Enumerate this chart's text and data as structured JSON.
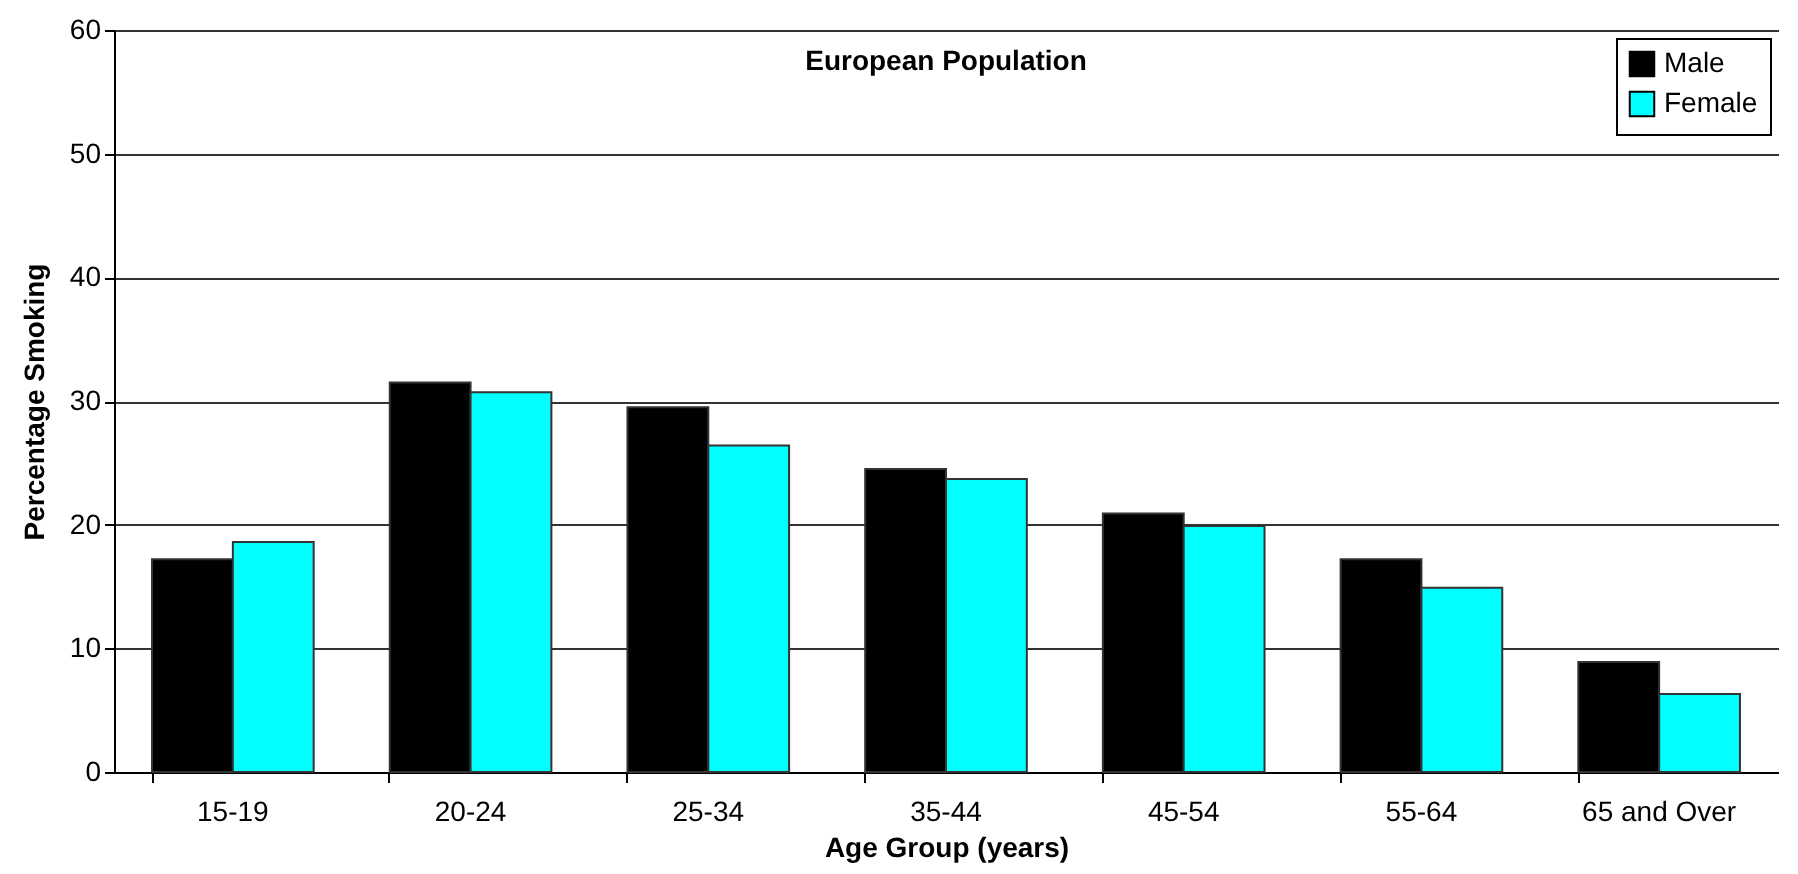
{
  "chart_data": {
    "type": "bar",
    "title": "European Population",
    "xlabel": "Age Group (years)",
    "ylabel": "Percentage Smoking",
    "categories": [
      "15-19",
      "20-24",
      "25-34",
      "35-44",
      "45-54",
      "55-64",
      "65 and Over"
    ],
    "series": [
      {
        "name": "Male",
        "color": "#000000",
        "values": [
          17.2,
          31.5,
          29.5,
          24.5,
          20.9,
          17.2,
          8.9
        ]
      },
      {
        "name": "Female",
        "color": "#00ffff",
        "values": [
          18.6,
          30.7,
          26.4,
          23.7,
          19.9,
          14.9,
          6.3
        ]
      }
    ],
    "ylim": [
      0,
      60
    ],
    "yticks": [
      0,
      10,
      20,
      30,
      40,
      50,
      60
    ],
    "grid": "y",
    "legend": "top right"
  }
}
